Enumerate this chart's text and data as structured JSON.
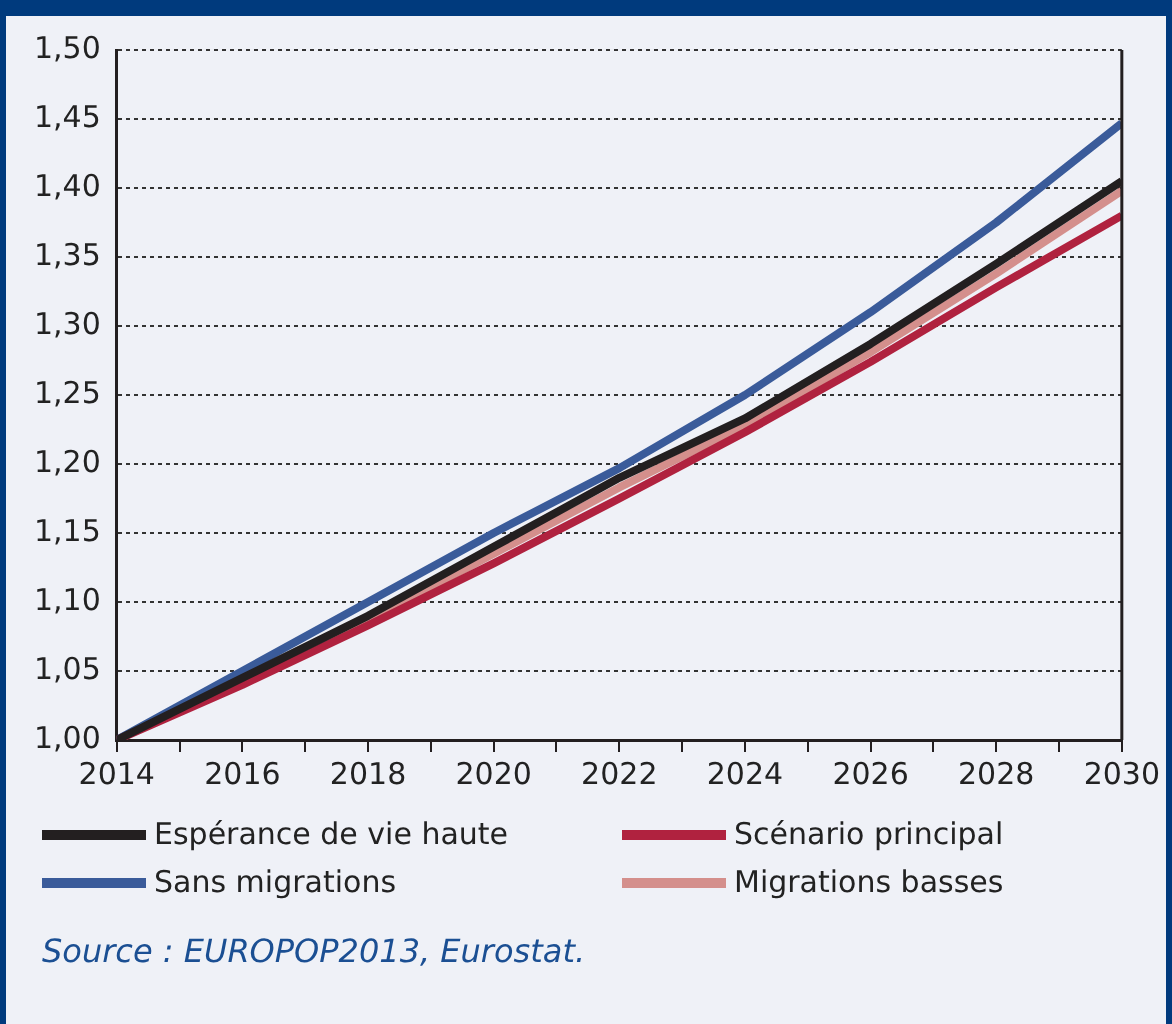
{
  "chart_data": {
    "type": "line",
    "x": [
      2014,
      2016,
      2018,
      2020,
      2022,
      2024,
      2026,
      2028,
      2030
    ],
    "series": [
      {
        "name": "Espérance de vie haute",
        "color": "#231f20",
        "values": [
          1.0,
          1.045,
          1.09,
          1.14,
          1.19,
          1.233,
          1.287,
          1.345,
          1.405
        ]
      },
      {
        "name": "Scénario principal",
        "color": "#b0223f",
        "values": [
          1.0,
          1.04,
          1.083,
          1.128,
          1.175,
          1.223,
          1.274,
          1.328,
          1.38
        ]
      },
      {
        "name": "Sans migrations",
        "color": "#3a5b9a",
        "values": [
          1.0,
          1.05,
          1.1,
          1.15,
          1.197,
          1.25,
          1.31,
          1.375,
          1.447
        ]
      },
      {
        "name": "Migrations basses",
        "color": "#d48f8c",
        "values": [
          1.0,
          1.043,
          1.087,
          1.135,
          1.183,
          1.228,
          1.281,
          1.338,
          1.398
        ]
      }
    ],
    "xlim": [
      2014,
      2030
    ],
    "xticks": [
      2014,
      {
        "value": 2015,
        "label": null
      },
      2016,
      {
        "value": 2017,
        "label": null
      },
      2018,
      {
        "value": 2019,
        "label": null
      },
      2020,
      {
        "value": 2021,
        "label": null
      },
      2022,
      {
        "value": 2023,
        "label": null
      },
      2024,
      {
        "value": 2025,
        "label": null
      },
      2026,
      {
        "value": 2027,
        "label": null
      },
      2028,
      {
        "value": 2029,
        "label": null
      },
      2030
    ],
    "ylim": [
      1.0,
      1.5
    ],
    "yticks": [
      {
        "value": 1.0,
        "label": "1,00"
      },
      {
        "value": 1.05,
        "label": "1,05"
      },
      {
        "value": 1.1,
        "label": "1,10"
      },
      {
        "value": 1.15,
        "label": "1,15"
      },
      {
        "value": 1.2,
        "label": "1,20"
      },
      {
        "value": 1.25,
        "label": "1,25"
      },
      {
        "value": 1.3,
        "label": "1,30"
      },
      {
        "value": 1.35,
        "label": "1,35"
      },
      {
        "value": 1.4,
        "label": "1,40"
      },
      {
        "value": 1.45,
        "label": "1,45"
      },
      {
        "value": 1.5,
        "label": "1,50"
      }
    ],
    "grid": "y",
    "legend": "bottom",
    "marker": "none",
    "line_style": "solid",
    "annotations": [
      "Source : EUROPOP2013, Eurostat."
    ]
  }
}
